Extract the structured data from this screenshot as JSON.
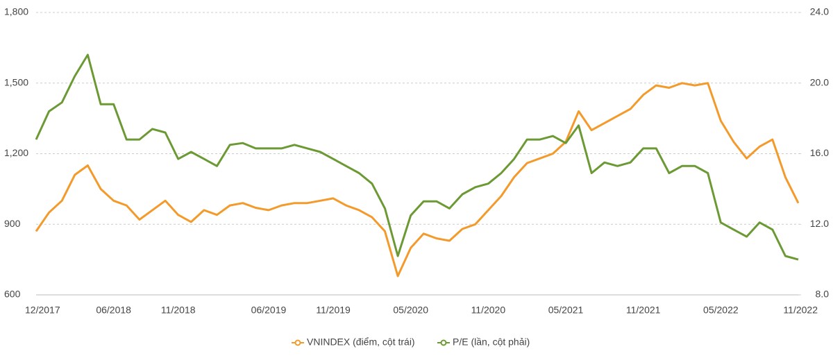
{
  "chart_data": {
    "type": "line",
    "x": [
      "12/2017",
      null,
      null,
      null,
      null,
      null,
      "06/2018",
      null,
      null,
      null,
      null,
      "11/2018",
      null,
      null,
      null,
      null,
      null,
      null,
      "06/2019",
      null,
      null,
      null,
      null,
      "11/2019",
      null,
      null,
      null,
      null,
      null,
      "05/2020",
      null,
      null,
      null,
      null,
      null,
      "11/2020",
      null,
      null,
      null,
      null,
      null,
      "05/2021",
      null,
      null,
      null,
      null,
      null,
      "11/2021",
      null,
      null,
      null,
      null,
      null,
      "05/2022",
      null,
      null,
      null,
      null,
      null,
      "11/2022"
    ],
    "series": [
      {
        "name": "VNINDEX (điểm, cột trái)",
        "color": "#f39a2b",
        "axis": "y",
        "values": [
          870,
          950,
          1000,
          1110,
          1150,
          1050,
          1000,
          980,
          920,
          960,
          1000,
          940,
          910,
          960,
          940,
          980,
          990,
          970,
          960,
          980,
          990,
          990,
          1000,
          1010,
          980,
          960,
          930,
          870,
          680,
          800,
          860,
          840,
          830,
          880,
          900,
          960,
          1020,
          1100,
          1160,
          1180,
          1200,
          1250,
          1380,
          1300,
          1330,
          1360,
          1390,
          1450,
          1490,
          1480,
          1500,
          1490,
          1500,
          1340,
          1250,
          1180,
          1230,
          1260,
          1100,
          990
        ]
      },
      {
        "name": "P/E (lần, cột phải)",
        "color": "#6b9a34",
        "axis": "y2",
        "values": [
          16.8,
          18.4,
          18.9,
          20.4,
          21.6,
          18.8,
          18.8,
          16.8,
          16.8,
          17.4,
          17.2,
          15.7,
          16.1,
          15.7,
          15.3,
          16.5,
          16.6,
          16.3,
          16.3,
          16.3,
          16.5,
          16.3,
          16.1,
          15.7,
          15.3,
          14.9,
          14.3,
          12.9,
          10.2,
          12.5,
          13.3,
          13.3,
          12.9,
          13.7,
          14.1,
          14.3,
          14.9,
          15.7,
          16.8,
          16.8,
          17.0,
          16.6,
          17.6,
          14.9,
          15.5,
          15.3,
          15.5,
          16.3,
          16.3,
          14.9,
          15.3,
          15.3,
          14.9,
          12.1,
          11.7,
          11.3,
          12.1,
          11.7,
          10.2,
          10.0
        ]
      }
    ],
    "ylim": [
      600,
      1800
    ],
    "yticks": [
      600,
      900,
      {
        "value": 1200,
        "label": "1,200"
      },
      {
        "value": 1500,
        "label": "1,500"
      },
      {
        "value": 1800,
        "label": "1,800"
      }
    ],
    "y2lim": [
      8,
      24
    ],
    "y2ticks": [
      {
        "value": 8,
        "label": "8.0"
      },
      {
        "value": 12,
        "label": "12.0"
      },
      {
        "value": 16,
        "label": "16.0"
      },
      {
        "value": 20,
        "label": "20.0"
      },
      {
        "value": 24,
        "label": "24.0"
      }
    ],
    "grid": true,
    "legend": "bottom"
  }
}
